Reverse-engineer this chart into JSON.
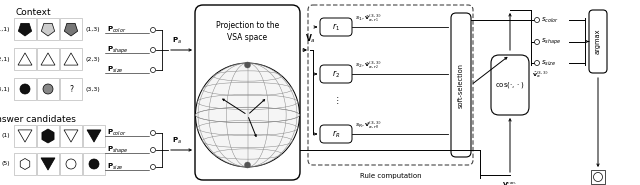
{
  "bg_color": "#ffffff",
  "fig_width": 6.4,
  "fig_height": 1.85,
  "dpi": 100,
  "context_label": "Context",
  "answer_label": "Answer candidates",
  "p_labels_context": [
    "$\\mathbf{P}_{color}$",
    "$\\mathbf{P}_{shape}$",
    "$\\mathbf{P}_{size}$"
  ],
  "pa_label": "$\\mathbf{P}_a$",
  "proj_label1": "Projection to the",
  "proj_label2": "VSA space",
  "va_label": "$\\mathbf{V}_a$",
  "rule_label": "Rule computation",
  "r_nodes": [
    "$r_1$",
    "$r_2$",
    "$r_R$"
  ],
  "r_labels": [
    "$s_1, \\hat{\\mathbf{v}}_{a,r_1}^{(3,3)}$",
    "$s_2, \\hat{\\mathbf{v}}_{a,r_2}^{(3,3)}$",
    "$s_R, \\hat{\\mathbf{v}}_{a,r_R}^{(3,3)}$"
  ],
  "dots_label": "$\\vdots$",
  "soft_sel_label": "soft-selection",
  "v_hat_label": "$\\hat{\\mathbf{v}}_a^{(3,3)}$",
  "cos_label": "$\\cos(\\cdot,\\cdot)$",
  "vcan_label": "$\\mathbf{V}_a^{can.}$",
  "s_labels": [
    "$s_{color}$",
    "$s_{shape}$",
    "$s_{size}$"
  ],
  "argmax_label": "argmax",
  "penta_colors_context": [
    "#111111",
    "#cccccc",
    "#777777"
  ],
  "circle_colors_context": [
    "#111111",
    "#888888"
  ],
  "line_color": "#000000",
  "dashed_color": "#555555"
}
